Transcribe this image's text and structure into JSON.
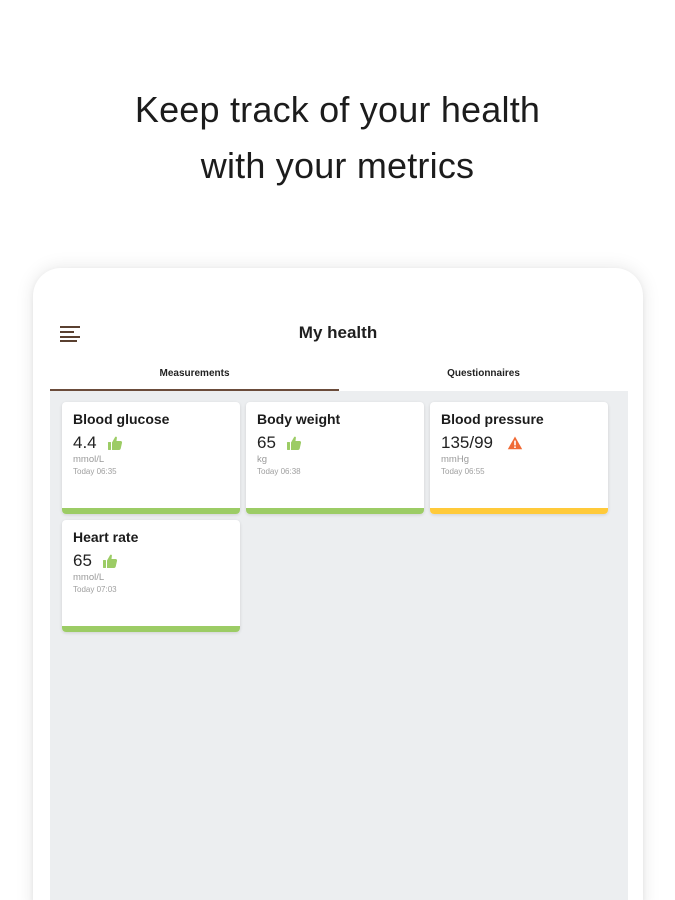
{
  "headline": {
    "line1": "Keep track of your health",
    "line2": "with your metrics"
  },
  "app": {
    "title": "My health",
    "menu_icon": "menu-icon"
  },
  "tabs": [
    {
      "label": "Measurements",
      "active": true
    },
    {
      "label": "Questionnaires",
      "active": false
    }
  ],
  "colors": {
    "good": "#9ccc65",
    "warning": "#ffca3a",
    "alert_icon": "#f06a35",
    "tab_indicator": "#6b4c3b"
  },
  "cards": [
    {
      "name": "Blood glucose",
      "value": "4.4",
      "unit": "mmol/L",
      "time": "Today 06:35",
      "status": "good",
      "icon": "thumbs-up-icon"
    },
    {
      "name": "Body weight",
      "value": "65",
      "unit": "kg",
      "time": "Today 06:38",
      "status": "good",
      "icon": "thumbs-up-icon"
    },
    {
      "name": "Blood pressure",
      "value": "135/99",
      "unit": "mmHg",
      "time": "Today 06:55",
      "status": "warning",
      "icon": "warning-icon"
    },
    {
      "name": "Heart rate",
      "value": "65",
      "unit": "mmol/L",
      "time": "Today 07:03",
      "status": "good",
      "icon": "thumbs-up-icon"
    }
  ]
}
